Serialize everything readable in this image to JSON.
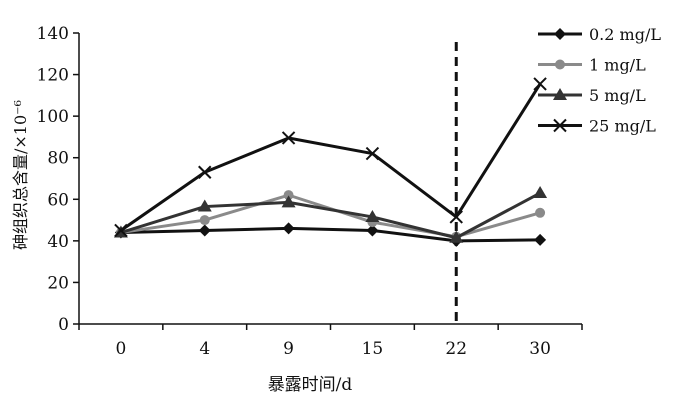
{
  "chart_data": {
    "type": "line",
    "xlabel": "暴露时间/d",
    "ylabel": "砷组织总含量/×10⁻⁶",
    "categories": [
      "0",
      "4",
      "9",
      "15",
      "22",
      "30"
    ],
    "ylim": [
      0,
      140
    ],
    "yticks": [
      "0",
      "20",
      "40",
      "60",
      "80",
      "100",
      "120",
      "140"
    ],
    "grid": false,
    "legend_position": "top-right",
    "reference_line": {
      "x_category": "22",
      "style": "dashed"
    },
    "series": [
      {
        "name": "0.2 mg/L",
        "marker": "diamond",
        "color": "#111111",
        "values": [
          44,
          45,
          46,
          45,
          40,
          40.5
        ]
      },
      {
        "name": "1 mg/L",
        "marker": "circle",
        "color": "#8a8a8a",
        "values": [
          44,
          50,
          62,
          49,
          42,
          53.5
        ]
      },
      {
        "name": "5 mg/L",
        "marker": "triangle",
        "color": "#333333",
        "values": [
          44,
          56.5,
          58.5,
          51.5,
          41.5,
          63
        ]
      },
      {
        "name": "25 mg/L",
        "marker": "x",
        "color": "#111111",
        "values": [
          45,
          73,
          89.5,
          82,
          51.5,
          115.5
        ]
      }
    ]
  }
}
